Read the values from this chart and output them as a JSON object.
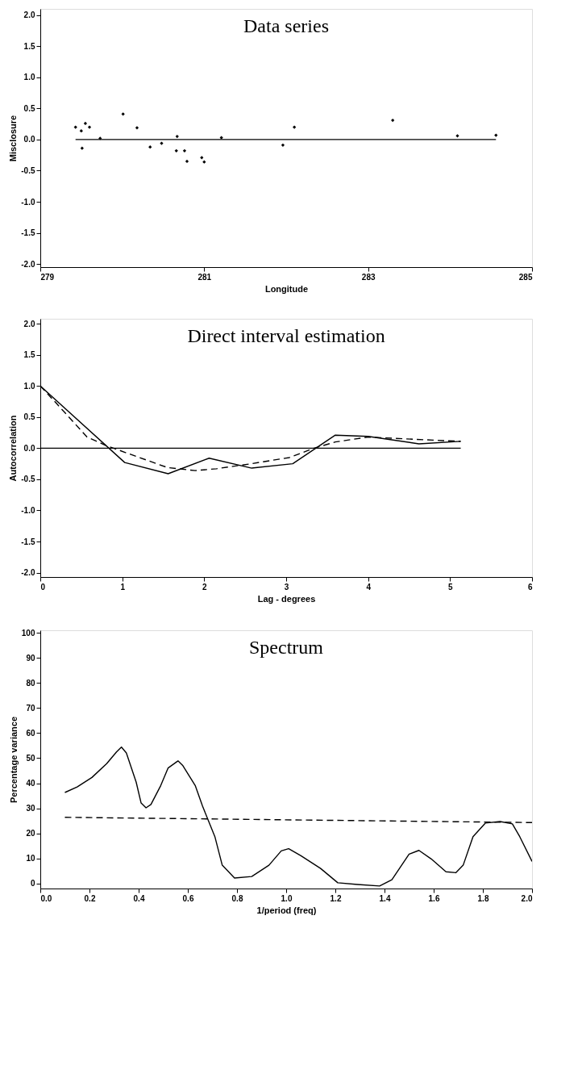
{
  "chart_data": [
    {
      "type": "scatter",
      "title": "Data series",
      "xlabel": "Longitude",
      "ylabel": "Misclosure",
      "xlim": [
        279,
        285
      ],
      "ylim": [
        -2.05,
        2.1
      ],
      "xticks": [
        279,
        281,
        283,
        285
      ],
      "yticks": [
        {
          "value": 2,
          "label": "2.0"
        },
        1.5,
        {
          "value": 1,
          "label": "1.0"
        },
        0.5,
        {
          "value": 0,
          "label": "0.0"
        },
        -0.5,
        {
          "value": -1,
          "label": "-1.0"
        },
        -1.5,
        {
          "value": -2,
          "label": "-2.0"
        }
      ],
      "grid": false,
      "marker": "diamond",
      "series": [
        {
          "color": "#000000",
          "x": [
            279.43,
            279.5,
            279.51,
            279.55,
            279.6,
            279.73,
            280.01,
            280.18,
            280.34,
            280.48,
            280.66,
            280.67,
            280.76,
            280.79,
            280.97,
            281.0,
            281.21,
            281.96,
            282.1,
            283.3,
            284.09,
            284.56
          ],
          "values": [
            0.2,
            0.14,
            -0.14,
            0.26,
            0.2,
            0.02,
            0.41,
            0.19,
            -0.12,
            -0.06,
            -0.18,
            0.05,
            -0.18,
            -0.35,
            -0.29,
            -0.36,
            0.03,
            -0.09,
            0.2,
            0.31,
            0.06,
            0.07
          ]
        }
      ],
      "ref_lines": [
        {
          "axis": "y",
          "value": 0,
          "color": "#000000",
          "line_style": "solid"
        }
      ]
    },
    {
      "type": "line",
      "title": "Direct interval estimation",
      "xlabel": "Lag - degrees",
      "ylabel": "Autocorrelation",
      "xlim": [
        0,
        6
      ],
      "ylim": [
        -2.07,
        2.08
      ],
      "xticks": [
        0,
        1,
        2,
        3,
        4,
        5,
        6
      ],
      "yticks": [
        {
          "value": 2,
          "label": "2.0"
        },
        1.5,
        {
          "value": 1,
          "label": "1.0"
        },
        0.5,
        {
          "value": 0,
          "label": "0.0"
        },
        -0.5,
        {
          "value": -1,
          "label": "-1.0"
        },
        -1.5,
        {
          "value": -2,
          "label": "-2.0"
        }
      ],
      "grid": false,
      "marker": "none",
      "series": [
        {
          "color": "#000000",
          "line_style": "solid",
          "x": [
            0,
            1.03,
            1.56,
            2.06,
            2.58,
            3.08,
            3.6,
            4.0,
            4.62,
            5.13
          ],
          "values": [
            1.0,
            -0.23,
            -0.41,
            -0.16,
            -0.32,
            -0.25,
            0.21,
            0.19,
            0.07,
            0.11
          ]
        },
        {
          "color": "#000000",
          "line_style": "dashed",
          "x": [
            0,
            0.19,
            0.57,
            0.79,
            1.04,
            1.55,
            1.89,
            2.15,
            2.57,
            3.04,
            3.34,
            3.6,
            4.0,
            4.45,
            4.79,
            5.13
          ],
          "values": [
            1.0,
            0.73,
            0.18,
            0.05,
            -0.07,
            -0.31,
            -0.36,
            -0.33,
            -0.25,
            -0.15,
            0.0,
            0.1,
            0.18,
            0.15,
            0.13,
            0.11
          ]
        }
      ],
      "ref_lines": [
        {
          "axis": "y",
          "value": 0,
          "color": "#000000",
          "line_style": "solid"
        }
      ]
    },
    {
      "type": "line",
      "title": "Spectrum",
      "xlabel": "1/period (freq)",
      "ylabel": "Percentage variance",
      "xlim": [
        0,
        2
      ],
      "ylim": [
        -2,
        101
      ],
      "xticks": [
        {
          "value": 0,
          "label": "0.0"
        },
        0.2,
        0.4,
        0.6,
        0.8,
        {
          "value": 1,
          "label": "1.0"
        },
        1.2,
        1.4,
        1.6,
        1.8,
        {
          "value": 2,
          "label": "2.0"
        }
      ],
      "yticks": [
        0,
        10,
        20,
        30,
        40,
        50,
        60,
        70,
        80,
        90,
        100
      ],
      "grid": false,
      "marker": "none",
      "series": [
        {
          "color": "#000000",
          "line_style": "solid",
          "x": [
            0.1,
            0.15,
            0.21,
            0.27,
            0.31,
            0.33,
            0.35,
            0.39,
            0.41,
            0.43,
            0.45,
            0.49,
            0.52,
            0.56,
            0.58,
            0.63,
            0.66,
            0.71,
            0.74,
            0.79,
            0.86,
            0.93,
            0.98,
            1.01,
            1.06,
            1.14,
            1.21,
            1.29,
            1.38,
            1.43,
            1.5,
            1.54,
            1.59,
            1.65,
            1.69,
            1.72,
            1.76,
            1.81,
            1.87,
            1.92,
            1.95,
            2.0
          ],
          "values": [
            36.3,
            38.5,
            42.3,
            47.8,
            52.5,
            54.4,
            52.1,
            40.4,
            32.1,
            30.2,
            31.5,
            39.1,
            46.1,
            48.9,
            47.0,
            39.1,
            30.8,
            18.7,
            7.3,
            2.2,
            2.8,
            7.3,
            13.0,
            13.9,
            11.1,
            6.0,
            0.3,
            -0.4,
            -1.0,
            1.5,
            11.7,
            13.2,
            9.8,
            4.7,
            4.3,
            7.3,
            18.7,
            24.1,
            24.7,
            23.8,
            18.7,
            8.8
          ]
        },
        {
          "color": "#000000",
          "line_style": "dashed",
          "x": [
            0.1,
            2.0
          ],
          "values": [
            26.4,
            24.3
          ]
        }
      ]
    }
  ]
}
